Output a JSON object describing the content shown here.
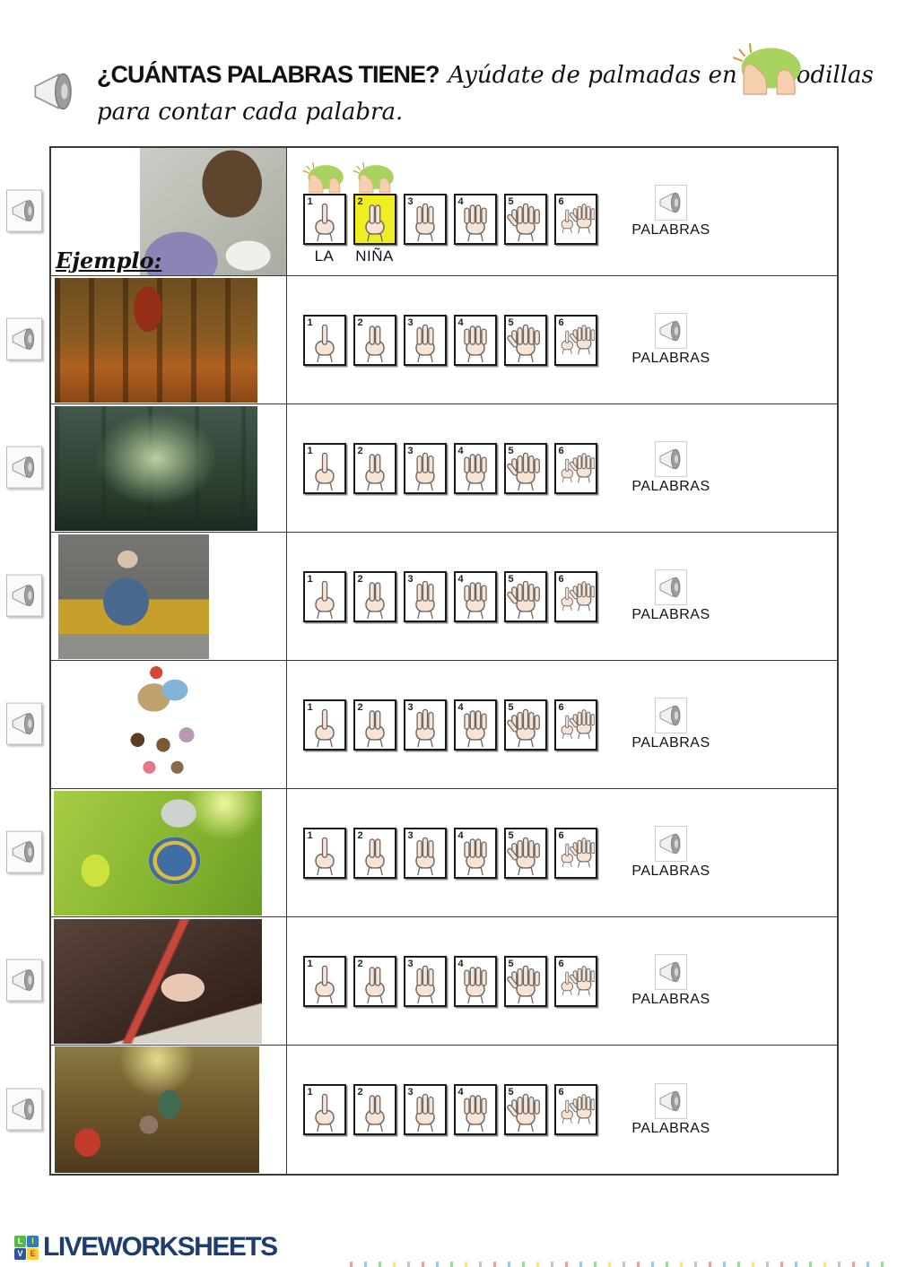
{
  "header": {
    "question": "¿CUÁNTAS PALABRAS TIENE?",
    "instruction_1": "Ayúdate de palmadas en las rodillas",
    "instruction_2": "para contar cada palabra."
  },
  "example": {
    "label": "Ejemplo:",
    "words": [
      "LA",
      "NIÑA"
    ],
    "word_count": 2,
    "highlighted_box": 2
  },
  "boxes": {
    "numbers": [
      1,
      2,
      3,
      4,
      5,
      6
    ],
    "highlight_color": "#f0ee23"
  },
  "palabras_label": "PALABRAS",
  "rows": [
    {
      "kind": "example",
      "image": "photo-girl-writing-notebook"
    },
    {
      "kind": "standard",
      "image": "photo-woman-reading-autumn-forest"
    },
    {
      "kind": "standard",
      "image": "photo-children-reading-green-forest"
    },
    {
      "kind": "standard",
      "image": "photo-man-writing-yellow-sofa"
    },
    {
      "kind": "standard",
      "image": "illustration-teacher-reading-to-children"
    },
    {
      "kind": "standard",
      "image": "photo-grandfather-boy-reading-park"
    },
    {
      "kind": "standard",
      "image": "photo-child-hand-writing-red-pencil"
    },
    {
      "kind": "standard",
      "image": "photo-girl-teddy-bear-tree-door"
    }
  ],
  "icons": {
    "speaker": "audio-speaker-horn",
    "clap": "clap-hands-on-knees"
  },
  "footer": {
    "logo_text": "LIVEWORKSHEETS",
    "logo_tiles": [
      {
        "letter": "L",
        "bg": "#58b947",
        "fg": "#ffffff"
      },
      {
        "letter": "I",
        "bg": "#2f7bc3",
        "fg": "#f8e71c"
      },
      {
        "letter": "V",
        "bg": "#2f55a0",
        "fg": "#ffffff"
      },
      {
        "letter": "E",
        "bg": "#f6d32d",
        "fg": "#e03c31"
      }
    ]
  },
  "colors": {
    "table_border": "#3a3a3a",
    "box_border": "#1a1a1a",
    "highlight_yellow": "#f0ee23",
    "logo_blue": "#1e3d6e",
    "clap_green": "#a9d35f",
    "skin": "#f9e4d4"
  }
}
